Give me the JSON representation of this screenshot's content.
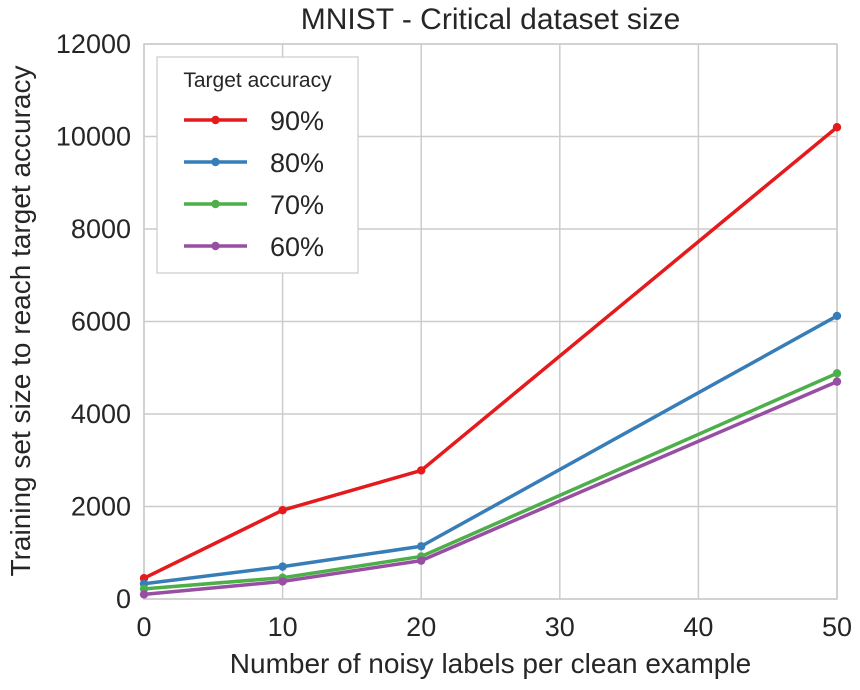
{
  "chart_data": {
    "type": "line",
    "title": "MNIST - Critical dataset size",
    "xlabel": "Number of noisy labels per clean example",
    "ylabel": "Training set size to reach target accuracy",
    "xlim": [
      0,
      50
    ],
    "ylim": [
      0,
      12000
    ],
    "xticks": [
      "0",
      "10",
      "20",
      "30",
      "40",
      "50"
    ],
    "yticks": [
      "0",
      "2000",
      "4000",
      "6000",
      "8000",
      "10000",
      "12000"
    ],
    "grid": true,
    "legend": {
      "title": "Target accuracy",
      "position": "top-left"
    },
    "x": [
      0,
      10,
      20,
      50
    ],
    "series": [
      {
        "name": "90%",
        "color": "#e41a1c",
        "values": [
          450,
          1920,
          2780,
          10200
        ]
      },
      {
        "name": "80%",
        "color": "#377eb8",
        "values": [
          330,
          700,
          1140,
          6120
        ]
      },
      {
        "name": "70%",
        "color": "#4daf4a",
        "values": [
          220,
          460,
          920,
          4880
        ]
      },
      {
        "name": "60%",
        "color": "#984ea3",
        "values": [
          100,
          380,
          830,
          4700
        ]
      }
    ]
  }
}
